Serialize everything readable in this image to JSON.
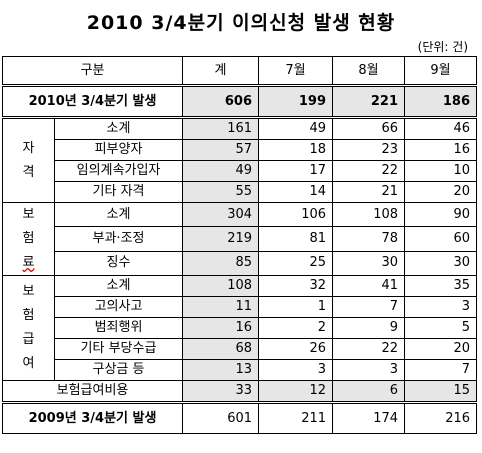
{
  "title": "2010 3/4분기 이의신청 발생 현황",
  "unit": "(단위: 건)",
  "headers": [
    "구분",
    "계",
    "7월",
    "8월",
    "9월"
  ],
  "total_row": {
    "label": "2010년 3/4분기 발생",
    "values": [
      "606",
      "199",
      "221",
      "186"
    ]
  },
  "groups": [
    {
      "category_chars": [
        "자",
        "격"
      ],
      "rows": [
        {
          "label": "소계",
          "values": [
            "161",
            "49",
            "66",
            "46"
          ]
        },
        {
          "label": "피부양자",
          "values": [
            "57",
            "18",
            "23",
            "16"
          ]
        },
        {
          "label": "임의계속가입자",
          "values": [
            "49",
            "17",
            "22",
            "10"
          ]
        },
        {
          "label": "기타 자격",
          "values": [
            "55",
            "14",
            "21",
            "20"
          ]
        }
      ]
    },
    {
      "category_chars": [
        "보",
        "험",
        "료"
      ],
      "rows": [
        {
          "label": "소계",
          "values": [
            "304",
            "106",
            "108",
            "90"
          ]
        },
        {
          "label": "부과·조정",
          "values": [
            "219",
            "81",
            "78",
            "60"
          ]
        },
        {
          "label": "징수",
          "values": [
            "85",
            "25",
            "30",
            "30"
          ]
        }
      ]
    },
    {
      "category_chars": [
        "보",
        "험",
        "급",
        "여"
      ],
      "rows": [
        {
          "label": "소계",
          "values": [
            "108",
            "32",
            "41",
            "35"
          ]
        },
        {
          "label": "고의사고",
          "values": [
            "11",
            "1",
            "7",
            "3"
          ]
        },
        {
          "label": "범죄행위",
          "values": [
            "16",
            "2",
            "9",
            "5"
          ]
        },
        {
          "label": "기타 부당수급",
          "values": [
            "68",
            "26",
            "22",
            "20"
          ]
        },
        {
          "label": "구상금 등",
          "values": [
            "13",
            "3",
            "3",
            "7"
          ]
        }
      ]
    }
  ],
  "expense_row": {
    "label": "보험급여비용",
    "values": [
      "33",
      "12",
      "6",
      "15"
    ]
  },
  "prev_row": {
    "label": "2009년 3/4분기 발생",
    "values": [
      "601",
      "211",
      "174",
      "216"
    ]
  }
}
